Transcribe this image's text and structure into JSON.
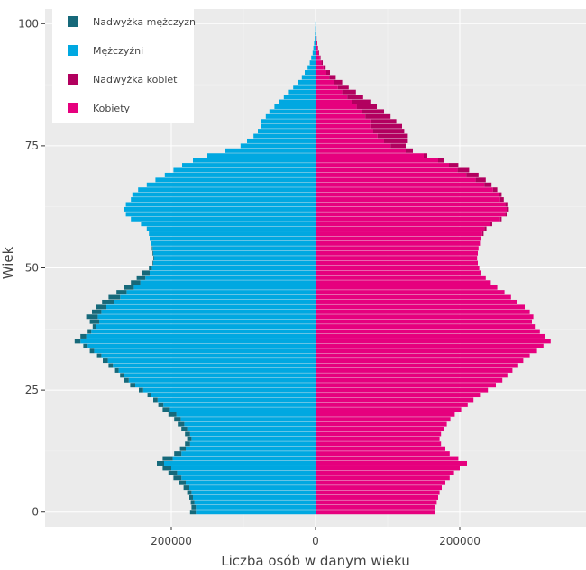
{
  "chart_data": {
    "type": "bar",
    "orientation": "horizontal",
    "xlabel": "Liczba osób w danym wieku",
    "ylabel": "Wiek",
    "xlim": [
      -375000,
      375000
    ],
    "ylim": [
      -3,
      103
    ],
    "x_ticks": [
      {
        "value": -200000,
        "label": "200000"
      },
      {
        "value": 0,
        "label": "0"
      },
      {
        "value": 200000,
        "label": "200000"
      }
    ],
    "y_ticks": [
      {
        "value": 0,
        "label": "0"
      },
      {
        "value": 25,
        "label": "25"
      },
      {
        "value": 50,
        "label": "50"
      },
      {
        "value": 75,
        "label": "75"
      },
      {
        "value": 100,
        "label": "100"
      }
    ],
    "grid": true,
    "legend_position": "top-left",
    "legend": [
      {
        "key": "male_surplus",
        "label": "Nadwyżka mężczyzn",
        "color": "#16697a"
      },
      {
        "key": "male",
        "label": "Mężczyźni",
        "color": "#00a8e1"
      },
      {
        "key": "female_surplus",
        "label": "Nadwyżka kobiet",
        "color": "#b2005f"
      },
      {
        "key": "female",
        "label": "Kobiety",
        "color": "#e6007e"
      }
    ],
    "ages": [
      0,
      1,
      2,
      3,
      4,
      5,
      6,
      7,
      8,
      9,
      10,
      11,
      12,
      13,
      14,
      15,
      16,
      17,
      18,
      19,
      20,
      21,
      22,
      23,
      24,
      25,
      26,
      27,
      28,
      29,
      30,
      31,
      32,
      33,
      34,
      35,
      36,
      37,
      38,
      39,
      40,
      41,
      42,
      43,
      44,
      45,
      46,
      47,
      48,
      49,
      50,
      51,
      52,
      53,
      54,
      55,
      56,
      57,
      58,
      59,
      60,
      61,
      62,
      63,
      64,
      65,
      66,
      67,
      68,
      69,
      70,
      71,
      72,
      73,
      74,
      75,
      76,
      77,
      78,
      79,
      80,
      81,
      82,
      83,
      84,
      85,
      86,
      87,
      88,
      89,
      90,
      91,
      92,
      93,
      94,
      95,
      96,
      97,
      98,
      99,
      100
    ],
    "series": [
      {
        "name": "Mężczyźni",
        "values": [
          174000,
          172000,
          173000,
          175000,
          178000,
          183000,
          190000,
          197000,
          204000,
          212000,
          220000,
          212000,
          196000,
          188000,
          181000,
          178000,
          181000,
          186000,
          191000,
          196000,
          204000,
          212000,
          218000,
          225000,
          233000,
          245000,
          257000,
          265000,
          271000,
          278000,
          287000,
          295000,
          303000,
          313000,
          322000,
          334000,
          326000,
          316000,
          309000,
          313000,
          318000,
          310000,
          305000,
          296000,
          287000,
          276000,
          265000,
          256000,
          248000,
          240000,
          231000,
          226000,
          225000,
          226000,
          227000,
          228000,
          230000,
          231000,
          234000,
          242000,
          256000,
          263000,
          265000,
          263000,
          256000,
          254000,
          246000,
          234000,
          222000,
          209000,
          197000,
          185000,
          170000,
          150000,
          125000,
          104000,
          95000,
          86000,
          80000,
          76000,
          76000,
          69000,
          64000,
          57000,
          50000,
          44000,
          37000,
          31000,
          25000,
          19000,
          15000,
          11000,
          8000,
          6000,
          4000,
          3000,
          2000,
          1000,
          700,
          400,
          200
        ]
      },
      {
        "name": "Kobiety",
        "values": [
          166000,
          166000,
          168000,
          170000,
          172000,
          175000,
          180000,
          186000,
          192000,
          200000,
          210000,
          198000,
          186000,
          180000,
          174000,
          172000,
          174000,
          178000,
          182000,
          187000,
          193000,
          202000,
          211000,
          219000,
          228000,
          239000,
          250000,
          259000,
          266000,
          273000,
          281000,
          288000,
          297000,
          307000,
          316000,
          326000,
          318000,
          311000,
          304000,
          300000,
          302000,
          297000,
          290000,
          280000,
          271000,
          262000,
          252000,
          243000,
          236000,
          230000,
          227000,
          225000,
          224000,
          225000,
          226000,
          228000,
          230000,
          233000,
          237000,
          245000,
          258000,
          265000,
          268000,
          266000,
          261000,
          258000,
          252000,
          244000,
          236000,
          226000,
          213000,
          198000,
          178000,
          155000,
          135000,
          125000,
          128000,
          128000,
          123000,
          120000,
          112000,
          104000,
          95000,
          85000,
          76000,
          66000,
          56000,
          46000,
          37000,
          28000,
          20000,
          14000,
          10000,
          7000,
          5000,
          3500,
          2500,
          1500,
          900,
          500,
          200
        ]
      }
    ]
  }
}
